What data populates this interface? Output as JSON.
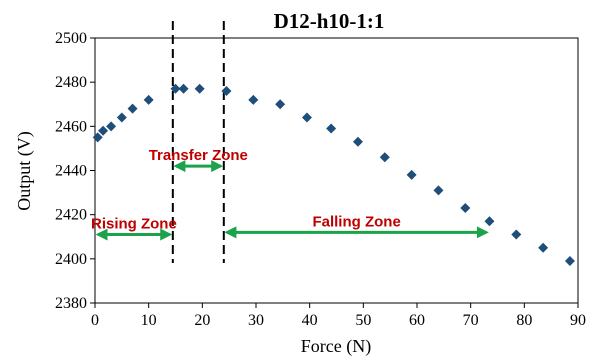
{
  "chart_data": {
    "type": "scatter",
    "title": "D12-h10-1:1",
    "xlabel": "Force (N)",
    "ylabel": "Output (V)",
    "xlim": [
      0,
      90
    ],
    "ylim": [
      2380,
      2500
    ],
    "xticks": [
      0,
      10,
      20,
      30,
      40,
      50,
      60,
      70,
      80,
      90
    ],
    "yticks": [
      2380,
      2400,
      2420,
      2440,
      2460,
      2480,
      2500
    ],
    "grid": false,
    "marker": "diamond",
    "colors": {
      "series": "#1F4E79",
      "arrow": "#1AA34A",
      "zone_text": "#C00000",
      "divider": "#000000"
    },
    "series": [
      {
        "x": [
          0.5,
          1.5,
          3,
          5,
          7,
          10,
          15,
          16.5,
          19.5,
          24.5,
          29.5,
          34.5,
          39.5,
          44,
          49,
          54,
          59,
          64,
          69,
          73.5,
          78.5,
          83.5,
          88.5
        ],
        "y": [
          2455,
          2458,
          2460,
          2464,
          2468,
          2472,
          2477,
          2477,
          2477,
          2476,
          2472,
          2470,
          2464,
          2459,
          2453,
          2446,
          2438,
          2431,
          2423,
          2417,
          2411,
          2405,
          2399
        ]
      }
    ],
    "dividers": [
      14.5,
      24
    ],
    "zones": [
      {
        "label": "Rising Zone",
        "x_start": 0,
        "x_end": 14.5,
        "y": 2411
      },
      {
        "label": "Transfer  Zone",
        "x_start": 14.5,
        "x_end": 24,
        "y": 2442
      },
      {
        "label": "Falling Zone",
        "x_start": 24,
        "x_end": 73.5,
        "y": 2412
      }
    ]
  }
}
